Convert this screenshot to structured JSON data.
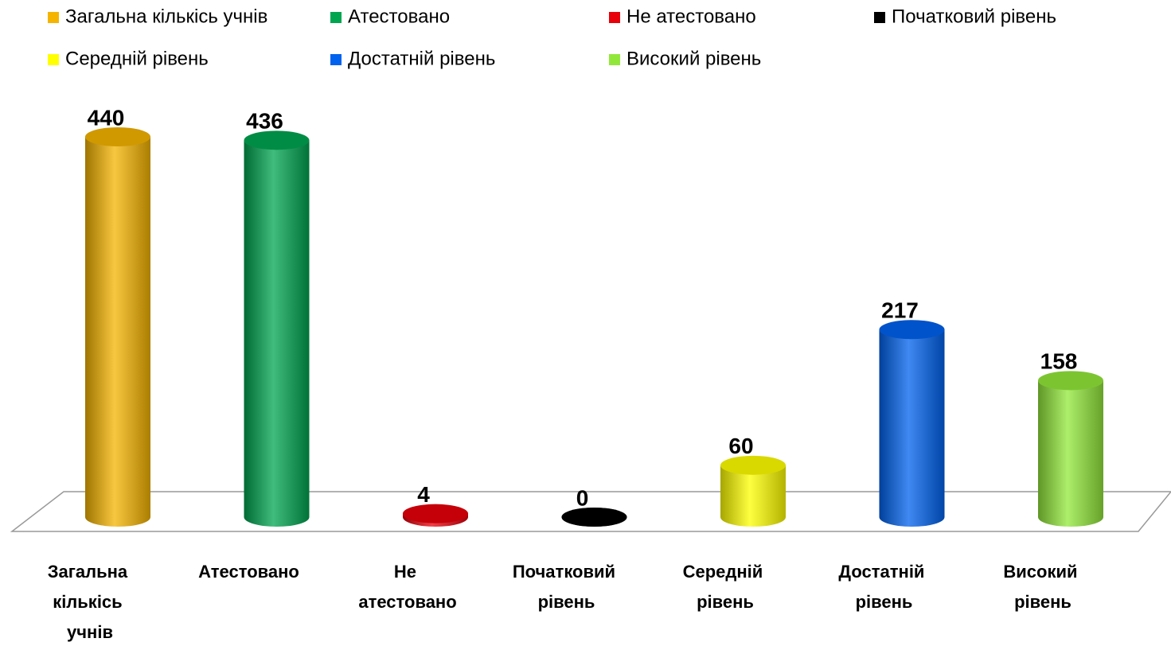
{
  "chart_data": {
    "type": "bar",
    "categories": [
      "Загальна кількісь учнів",
      "Атестовано",
      "Не атестовано",
      "Початковий рівень",
      "Середній рівень",
      "Достатній рівень",
      "Високий рівень"
    ],
    "values": [
      440,
      436,
      4,
      0,
      60,
      217,
      158
    ],
    "colors": [
      "#f5b400",
      "#00a550",
      "#e8000b",
      "#000000",
      "#ffff00",
      "#0062ee",
      "#92e83a"
    ]
  }
}
